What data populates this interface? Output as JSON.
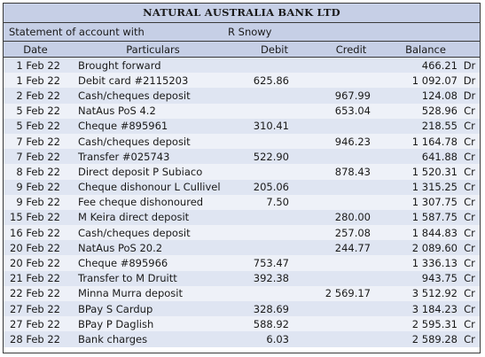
{
  "header": {
    "bank_name": "NATURAL AUSTRALIA BANK LTD",
    "statement_label": "Statement of account with",
    "account_holder": "R Snowy"
  },
  "columns": [
    "Date",
    "Particulars",
    "Debit",
    "Credit",
    "Balance",
    ""
  ],
  "rows": [
    {
      "date": "1 Feb 22",
      "particulars": "Brought forward",
      "debit": "",
      "credit": "",
      "balance": "466.21",
      "drcr": "Dr"
    },
    {
      "date": "1 Feb 22",
      "particulars": "Debit card #2115203",
      "debit": "625.86",
      "credit": "",
      "balance": "1 092.07",
      "drcr": "Dr"
    },
    {
      "date": "2 Feb 22",
      "particulars": "Cash/cheques deposit",
      "debit": "",
      "credit": "967.99",
      "balance": "124.08",
      "drcr": "Dr"
    },
    {
      "date": "5 Feb 22",
      "particulars": "NatAus PoS 4.2",
      "debit": "",
      "credit": "653.04",
      "balance": "528.96",
      "drcr": "Cr"
    },
    {
      "date": "5 Feb 22",
      "particulars": "Cheque #895961",
      "debit": "310.41",
      "credit": "",
      "balance": "218.55",
      "drcr": "Cr"
    },
    {
      "date": "7 Feb 22",
      "particulars": "Cash/cheques deposit",
      "debit": "",
      "credit": "946.23",
      "balance": "1 164.78",
      "drcr": "Cr"
    },
    {
      "date": "7 Feb 22",
      "particulars": "Transfer #025743",
      "debit": "522.90",
      "credit": "",
      "balance": "641.88",
      "drcr": "Cr"
    },
    {
      "date": "8 Feb 22",
      "particulars": "Direct deposit P Subiaco",
      "debit": "",
      "credit": "878.43",
      "balance": "1 520.31",
      "drcr": "Cr"
    },
    {
      "date": "9 Feb 22",
      "particulars": "Cheque dishonour L Cullivel",
      "debit": "205.06",
      "credit": "",
      "balance": "1 315.25",
      "drcr": "Cr"
    },
    {
      "date": "9 Feb 22",
      "particulars": "Fee cheque dishonoured",
      "debit": "7.50",
      "credit": "",
      "balance": "1 307.75",
      "drcr": "Cr"
    },
    {
      "date": "15 Feb 22",
      "particulars": "M Keira direct deposit",
      "debit": "",
      "credit": "280.00",
      "balance": "1 587.75",
      "drcr": "Cr"
    },
    {
      "date": "16 Feb 22",
      "particulars": "Cash/cheques deposit",
      "debit": "",
      "credit": "257.08",
      "balance": "1 844.83",
      "drcr": "Cr"
    },
    {
      "date": "20 Feb 22",
      "particulars": "NatAus PoS 20.2",
      "debit": "",
      "credit": "244.77",
      "balance": "2 089.60",
      "drcr": "Cr"
    },
    {
      "date": "20 Feb 22",
      "particulars": "Cheque #895966",
      "debit": "753.47",
      "credit": "",
      "balance": "1 336.13",
      "drcr": "Cr"
    },
    {
      "date": "21 Feb 22",
      "particulars": "Transfer to M Druitt",
      "debit": "392.38",
      "credit": "",
      "balance": "943.75",
      "drcr": "Cr"
    },
    {
      "date": "22 Feb 22",
      "particulars": "Minna Murra deposit",
      "debit": "",
      "credit": "2 569.17",
      "balance": "3 512.92",
      "drcr": "Cr"
    },
    {
      "date": "27 Feb 22",
      "particulars": "BPay S Cardup",
      "debit": "328.69",
      "credit": "",
      "balance": "3 184.23",
      "drcr": "Cr"
    },
    {
      "date": "27 Feb 22",
      "particulars": "BPay P Daglish",
      "debit": "588.92",
      "credit": "",
      "balance": "2 595.31",
      "drcr": "Cr"
    },
    {
      "date": "28 Feb 22",
      "particulars": "Bank charges",
      "debit": "6.03",
      "credit": "",
      "balance": "2 589.28",
      "drcr": "Cr"
    }
  ]
}
